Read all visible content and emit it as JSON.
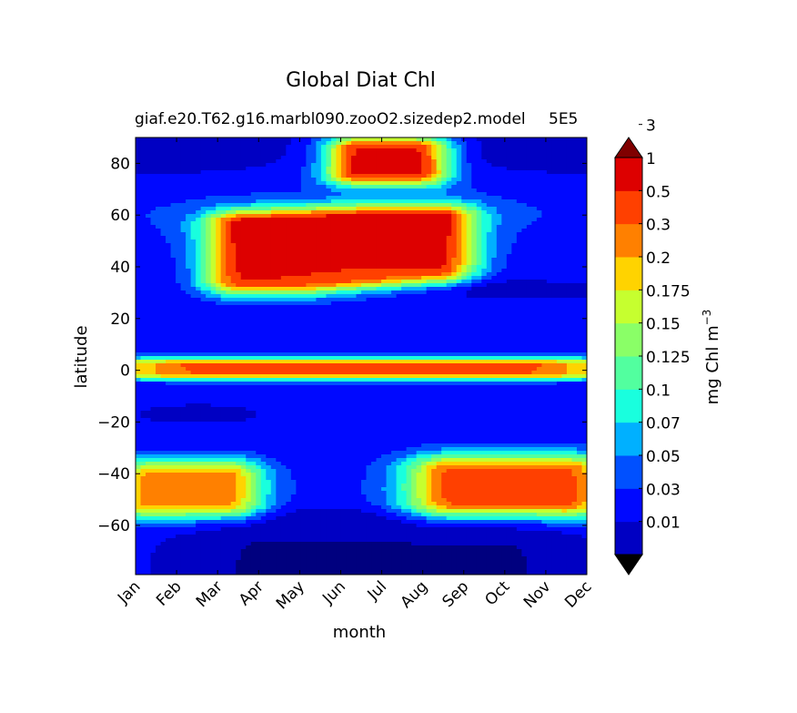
{
  "chart_data": {
    "type": "heatmap",
    "title": "Global Diat Chl",
    "subtitle": "giaf.e20.T62.g16.marbl090.zooO2.sizedep2.model",
    "subtitle_right": "5E5",
    "xlabel": "month",
    "ylabel": "latitude",
    "x_categories": [
      "Jan",
      "Feb",
      "Mar",
      "Apr",
      "May",
      "Jun",
      "Jul",
      "Aug",
      "Sep",
      "Oct",
      "Nov",
      "Dec"
    ],
    "y_ticks": [
      80,
      60,
      40,
      20,
      0,
      -20,
      -40,
      -60
    ],
    "y_tick_labels": [
      "80",
      "60",
      "40",
      "20",
      "0",
      "−20",
      "−40",
      "−60"
    ],
    "ylim": [
      -79,
      90
    ],
    "colorbar": {
      "label": "mg Chl m",
      "label_superscript": "−3",
      "levels": [
        "0.01",
        "0.03",
        "0.05",
        "0.07",
        "0.1",
        "0.125",
        "0.15",
        "0.175",
        "0.2",
        "0.3",
        "0.5",
        "1",
        "3"
      ],
      "colors": [
        "#00007f",
        "#0000c3",
        "#0008ff",
        "#0050ff",
        "#00b0ff",
        "#19ffde",
        "#52ff9f",
        "#8aff67",
        "#c6ff2f",
        "#ffd300",
        "#ff8000",
        "#ff4000",
        "#dd0000",
        "#800000"
      ],
      "extend": "both"
    },
    "blobs": [
      {
        "name": "NH spring-summer bloom",
        "months": [
          2.2,
          8.6
        ],
        "lat": [
          33,
          66
        ],
        "peak": 12
      },
      {
        "name": "Arctic summer bloom",
        "months": [
          5.1,
          7.2
        ],
        "lat": [
          72,
          90
        ],
        "peak": 12
      },
      {
        "name": "Equatorial band",
        "months": [
          0,
          11
        ],
        "lat": [
          -3,
          4
        ],
        "peak": 11
      },
      {
        "name": "Southern Ocean Jan-Feb bloom",
        "months": [
          0,
          2.6
        ],
        "lat": [
          -57,
          -35
        ],
        "peak": 10
      },
      {
        "name": "Southern Ocean Oct-Dec bloom",
        "months": [
          7.2,
          11
        ],
        "lat": [
          -57,
          -33
        ],
        "peak": 11
      }
    ]
  }
}
